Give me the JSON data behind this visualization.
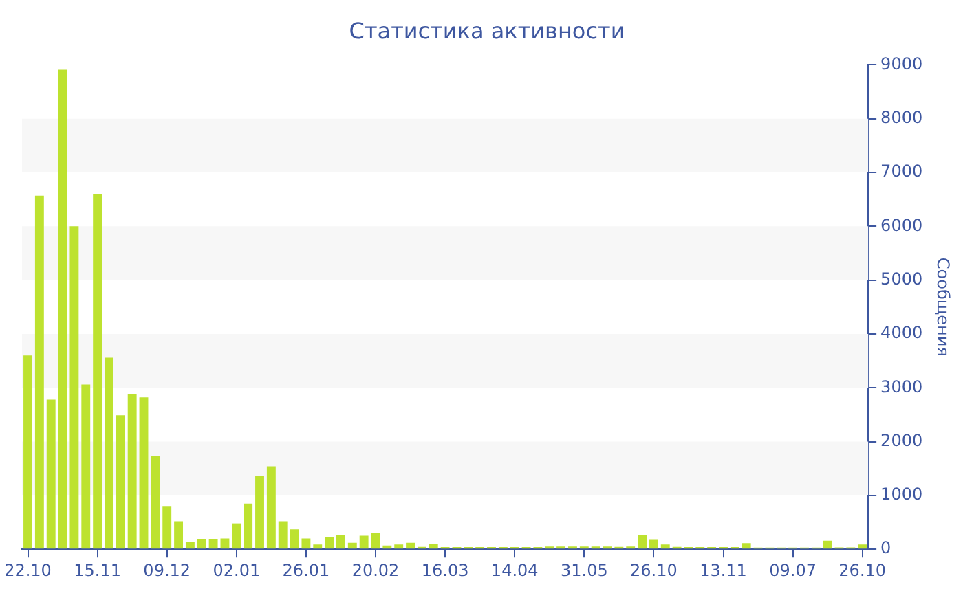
{
  "chart_data": {
    "type": "bar",
    "title": "Статистика активности",
    "y2label": "Сообщения",
    "categories": [
      "22.10",
      null,
      null,
      null,
      null,
      null,
      "15.11",
      null,
      null,
      null,
      null,
      null,
      "09.12",
      null,
      null,
      null,
      null,
      null,
      "02.01",
      null,
      null,
      null,
      null,
      null,
      "26.01",
      null,
      null,
      null,
      null,
      null,
      "20.02",
      null,
      null,
      null,
      null,
      null,
      "16.03",
      null,
      null,
      null,
      null,
      null,
      "14.04",
      null,
      null,
      null,
      null,
      null,
      "31.05",
      null,
      null,
      null,
      null,
      null,
      "26.10",
      null,
      null,
      null,
      null,
      null,
      "13.11",
      null,
      null,
      null,
      null,
      null,
      "09.07",
      null,
      null,
      null,
      null,
      null,
      "26.10"
    ],
    "series": [
      {
        "color": "#bde22f",
        "axis": "y2",
        "values": [
          3600,
          6570,
          2780,
          8910,
          6000,
          3060,
          6600,
          3560,
          2490,
          2880,
          2820,
          1740,
          790,
          520,
          130,
          190,
          180,
          200,
          480,
          850,
          1370,
          1540,
          520,
          370,
          200,
          90,
          220,
          265,
          120,
          250,
          310,
          70,
          90,
          120,
          45,
          95,
          40,
          40,
          40,
          40,
          40,
          40,
          40,
          40,
          40,
          50,
          50,
          50,
          50,
          50,
          50,
          45,
          50,
          265,
          175,
          90,
          45,
          40,
          40,
          40,
          40,
          40,
          115,
          30,
          30,
          30,
          30,
          30,
          30,
          160,
          35,
          35,
          90
        ]
      }
    ],
    "y2lim": [
      0,
      9000
    ],
    "y2ticks": [
      0,
      1000,
      2000,
      3000,
      4000,
      5000,
      6000,
      7000,
      8000,
      9000
    ],
    "bands": [
      {
        "axis": "y2",
        "from": 1000,
        "to": 2000,
        "color": "#f7f7f7"
      },
      {
        "axis": "y2",
        "from": 3000,
        "to": 4000,
        "color": "#f7f7f7"
      },
      {
        "axis": "y2",
        "from": 5000,
        "to": 6000,
        "color": "#f7f7f7"
      },
      {
        "axis": "y2",
        "from": 7000,
        "to": 8000,
        "color": "#f7f7f7"
      }
    ],
    "grid": false,
    "legend": false
  }
}
